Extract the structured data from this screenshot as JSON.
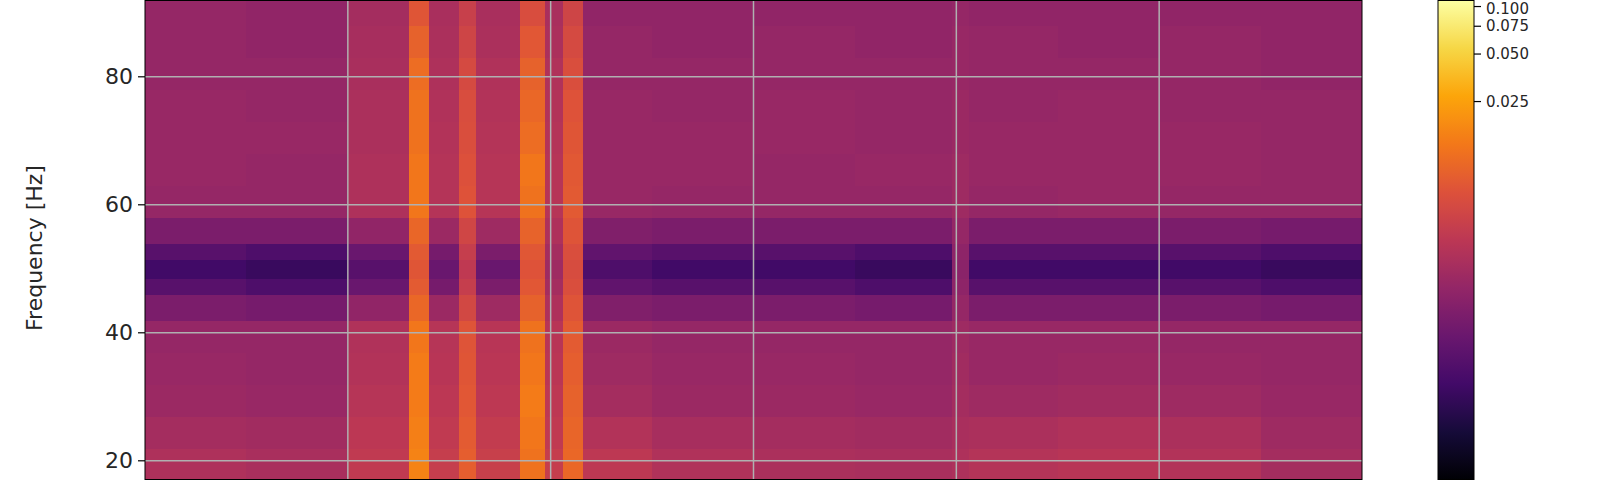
{
  "chart_data": {
    "type": "heatmap",
    "y_label": "Frequency [Hz]",
    "x_edges": [
      0,
      0.5,
      1.0,
      1.3,
      1.4,
      1.55,
      1.63,
      1.85,
      1.97,
      2.06,
      2.16,
      2.5,
      3.0,
      3.5,
      3.98,
      4.06,
      4.5,
      5.0,
      5.5,
      6.0
    ],
    "y_edges": [
      17,
      22,
      27,
      32,
      37,
      42,
      46,
      48.5,
      51.5,
      54,
      58,
      63,
      68,
      73,
      78,
      83,
      88,
      92
    ],
    "cells": [
      [
        0.0026,
        0.0024,
        0.0036,
        0.016,
        0.004,
        0.0085,
        0.0042,
        0.012,
        0.004,
        0.01,
        0.0034,
        0.0027,
        0.0025,
        0.0024,
        0.0026,
        0.0029,
        0.0031,
        0.0028,
        0.0022
      ],
      [
        0.0022,
        0.0021,
        0.0033,
        0.015,
        0.0036,
        0.008,
        0.0038,
        0.013,
        0.0036,
        0.0095,
        0.0028,
        0.0023,
        0.0022,
        0.0021,
        0.0024,
        0.0025,
        0.0027,
        0.0025,
        0.002
      ],
      [
        0.0019,
        0.0018,
        0.003,
        0.014,
        0.0033,
        0.0075,
        0.0034,
        0.014,
        0.0034,
        0.009,
        0.0022,
        0.0019,
        0.0019,
        0.0018,
        0.0022,
        0.002,
        0.0021,
        0.002,
        0.0018
      ],
      [
        0.0018,
        0.0017,
        0.0028,
        0.014,
        0.0031,
        0.0072,
        0.0032,
        0.013,
        0.0032,
        0.0085,
        0.002,
        0.0018,
        0.0018,
        0.0017,
        0.0021,
        0.0018,
        0.0019,
        0.0018,
        0.0017
      ],
      [
        0.0017,
        0.0017,
        0.0027,
        0.013,
        0.003,
        0.007,
        0.0031,
        0.012,
        0.0031,
        0.008,
        0.0019,
        0.0017,
        0.0017,
        0.0017,
        0.002,
        0.0018,
        0.0018,
        0.0017,
        0.0017
      ],
      [
        0.0011,
        0.001,
        0.0016,
        0.01,
        0.0019,
        0.0052,
        0.002,
        0.009,
        0.0026,
        0.007,
        0.0012,
        0.0011,
        0.0011,
        0.001,
        0.0017,
        0.0011,
        0.0011,
        0.0011,
        0.001
      ],
      [
        0.0006,
        0.0005,
        0.0008,
        0.008,
        0.001,
        0.004,
        0.0011,
        0.0075,
        0.0022,
        0.0062,
        0.0007,
        0.0006,
        0.0006,
        0.0005,
        0.0015,
        0.0006,
        0.0006,
        0.0006,
        0.0005
      ],
      [
        0.0004,
        0.00035,
        0.0006,
        0.0072,
        0.0008,
        0.0035,
        0.0008,
        0.0068,
        0.002,
        0.0058,
        0.0005,
        0.0004,
        0.0004,
        0.00035,
        0.0014,
        0.0004,
        0.0004,
        0.0004,
        0.00035
      ],
      [
        0.0006,
        0.0005,
        0.0008,
        0.0078,
        0.001,
        0.004,
        0.0011,
        0.0074,
        0.0022,
        0.0062,
        0.0007,
        0.0006,
        0.0006,
        0.0005,
        0.0015,
        0.0006,
        0.0006,
        0.0006,
        0.0005
      ],
      [
        0.0011,
        0.0011,
        0.0016,
        0.0098,
        0.0019,
        0.005,
        0.002,
        0.0092,
        0.0026,
        0.007,
        0.0012,
        0.0011,
        0.0011,
        0.0011,
        0.0017,
        0.0011,
        0.0011,
        0.0011,
        0.001
      ],
      [
        0.0017,
        0.0017,
        0.0026,
        0.013,
        0.0029,
        0.0068,
        0.003,
        0.012,
        0.003,
        0.0078,
        0.0018,
        0.0017,
        0.0017,
        0.0017,
        0.002,
        0.0017,
        0.0018,
        0.0017,
        0.0017
      ],
      [
        0.0018,
        0.0017,
        0.0026,
        0.013,
        0.0029,
        0.0065,
        0.003,
        0.013,
        0.003,
        0.0076,
        0.0018,
        0.0018,
        0.0017,
        0.0018,
        0.002,
        0.0018,
        0.0018,
        0.0018,
        0.0017
      ],
      [
        0.0018,
        0.0018,
        0.0025,
        0.012,
        0.0028,
        0.0062,
        0.0029,
        0.011,
        0.0029,
        0.0072,
        0.0018,
        0.0018,
        0.0018,
        0.0017,
        0.0019,
        0.0018,
        0.0018,
        0.0018,
        0.0017
      ],
      [
        0.0018,
        0.0017,
        0.0025,
        0.012,
        0.0027,
        0.006,
        0.0028,
        0.01,
        0.0028,
        0.0068,
        0.0018,
        0.0017,
        0.0018,
        0.0017,
        0.0019,
        0.0017,
        0.0018,
        0.0017,
        0.0017
      ],
      [
        0.0017,
        0.0017,
        0.0024,
        0.011,
        0.0026,
        0.0055,
        0.0027,
        0.009,
        0.0027,
        0.0062,
        0.0017,
        0.0017,
        0.0017,
        0.0017,
        0.0018,
        0.0017,
        0.0017,
        0.0017,
        0.0016
      ],
      [
        0.0017,
        0.0016,
        0.0023,
        0.009,
        0.0025,
        0.0048,
        0.0025,
        0.0075,
        0.0025,
        0.0055,
        0.0017,
        0.0016,
        0.0017,
        0.0016,
        0.0018,
        0.0017,
        0.0016,
        0.0017,
        0.0016
      ],
      [
        0.0017,
        0.0016,
        0.0022,
        0.0072,
        0.0024,
        0.0042,
        0.0024,
        0.006,
        0.0024,
        0.0048,
        0.0016,
        0.0016,
        0.0016,
        0.0016,
        0.0017,
        0.0016,
        0.0016,
        0.0016,
        0.0016
      ]
    ],
    "xlim": [
      0,
      6
    ],
    "ylim": [
      17,
      92
    ],
    "xticks": [
      1,
      2,
      3,
      4,
      5
    ],
    "yticks": [
      20,
      40,
      60,
      80
    ],
    "grid": true,
    "tick_labels": "y",
    "colorbar": {
      "range": [
        0.0001,
        0.11
      ],
      "log": true,
      "ticks": [
        0.025,
        {
          "value": 0.05,
          "label": "0.050"
        },
        0.075,
        {
          "value": 0.1,
          "label": "0.100"
        }
      ]
    }
  }
}
